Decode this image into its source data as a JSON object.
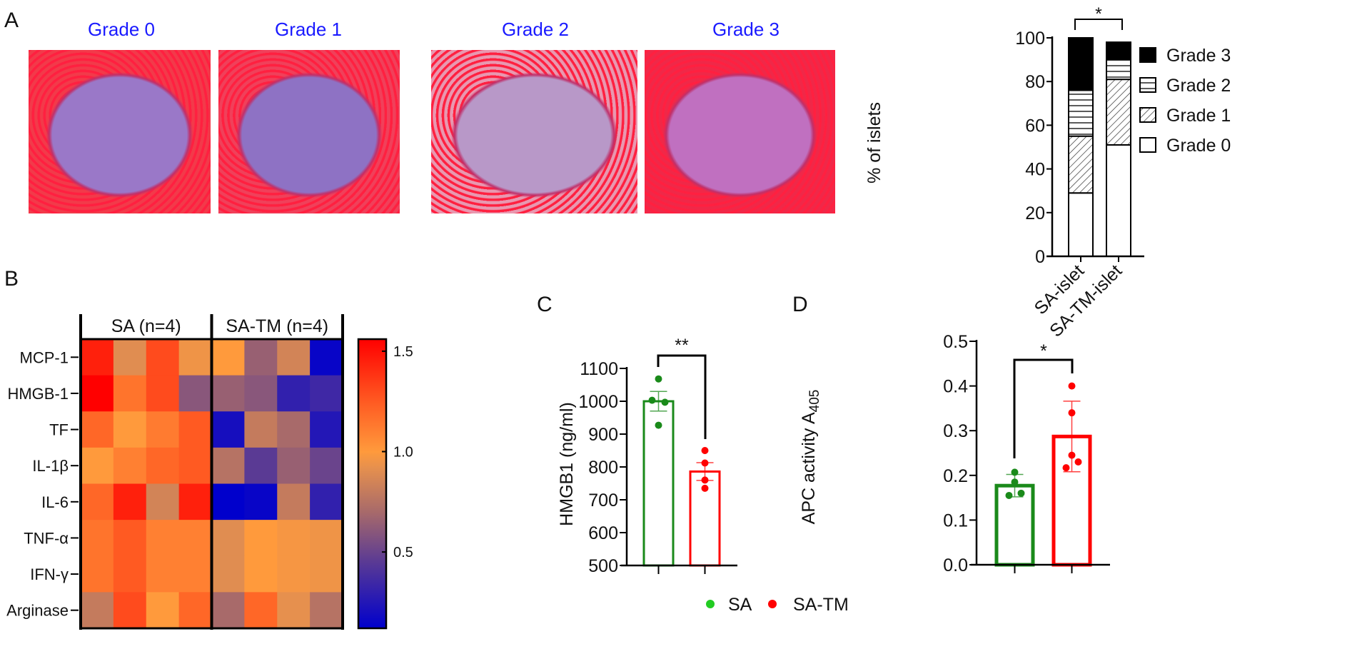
{
  "panel_labels": {
    "a": "A",
    "b": "B",
    "c": "C",
    "d": "D"
  },
  "histology": [
    {
      "title": "Grade 0",
      "tone": "#f23a4a",
      "islet": "#9a78c8"
    },
    {
      "title": "Grade 1",
      "tone": "#f0405a",
      "islet": "#8e72c4"
    },
    {
      "title": "Grade 2",
      "tone": "#e898b0",
      "islet": "#b898c8"
    },
    {
      "title": "Grade 3",
      "tone": "#f02848",
      "islet": "#c070c0"
    }
  ],
  "chart_data": [
    {
      "id": "A",
      "type": "bar",
      "stacked": true,
      "categories": [
        "SA-islet",
        "SA-TM-islet"
      ],
      "series": [
        {
          "name": "Grade 0",
          "values": [
            29,
            51
          ],
          "fill": "white"
        },
        {
          "name": "Grade 1",
          "values": [
            26,
            30
          ],
          "fill": "diagonal-hatch"
        },
        {
          "name": "Grade 2",
          "values": [
            21,
            9
          ],
          "fill": "horizontal-hatch"
        },
        {
          "name": "Grade 3",
          "values": [
            24,
            8
          ],
          "fill": "black"
        }
      ],
      "legend_order": [
        "Grade 3",
        "Grade 2",
        "Grade 1",
        "Grade 0"
      ],
      "ylabel": "% of islets",
      "ylim": [
        0,
        100
      ],
      "yticks": [
        0,
        20,
        40,
        60,
        80,
        100
      ],
      "ytick_labels": [
        "0",
        "20",
        "40",
        "60",
        "80",
        "100"
      ],
      "significance": "*",
      "legend": "right"
    },
    {
      "id": "B",
      "type": "heatmap",
      "rows": [
        "MCP-1",
        "HMGB-1",
        "TF",
        "IL-1β",
        "IL-6",
        "TNF-α",
        "IFN-γ",
        "Arginase"
      ],
      "column_groups": [
        {
          "label": "SA (n=4)",
          "n": 4
        },
        {
          "label": "SA-TM (n=4)",
          "n": 4
        }
      ],
      "values": [
        [
          1.45,
          0.9,
          1.3,
          0.95,
          1.0,
          0.65,
          0.85,
          0.15
        ],
        [
          1.56,
          1.15,
          1.3,
          0.6,
          0.65,
          0.6,
          0.3,
          0.35
        ],
        [
          1.2,
          1.0,
          1.12,
          1.25,
          0.2,
          0.8,
          0.7,
          0.25
        ],
        [
          1.0,
          1.1,
          1.2,
          1.25,
          0.75,
          0.45,
          0.65,
          0.5
        ],
        [
          1.2,
          1.45,
          0.85,
          1.45,
          0.12,
          0.15,
          0.8,
          0.3
        ],
        [
          1.15,
          1.25,
          1.1,
          1.1,
          0.9,
          1.0,
          0.97,
          0.95
        ],
        [
          1.15,
          1.25,
          1.1,
          1.1,
          0.9,
          1.0,
          0.97,
          0.95
        ],
        [
          0.8,
          1.3,
          1.0,
          1.2,
          0.7,
          1.2,
          0.92,
          0.75
        ]
      ],
      "colorbar": {
        "range": [
          0.12,
          1.56
        ],
        "ticks": [
          0.5,
          1.0,
          1.5
        ],
        "tick_labels": [
          "0.5",
          "1.0",
          "1.5"
        ],
        "stops": [
          {
            "v": 0.12,
            "c": "#0000cc"
          },
          {
            "v": 0.45,
            "c": "#5a3a94"
          },
          {
            "v": 0.7,
            "c": "#a86a6a"
          },
          {
            "v": 0.92,
            "c": "#e6904e"
          },
          {
            "v": 1.0,
            "c": "#ff9a3c"
          },
          {
            "v": 1.25,
            "c": "#ff5a22"
          },
          {
            "v": 1.56,
            "c": "#ff0000"
          }
        ]
      }
    },
    {
      "id": "C",
      "type": "bar",
      "categories": [
        "SA",
        "SA-TM"
      ],
      "means": [
        1000,
        786
      ],
      "errors": [
        30,
        27
      ],
      "points": [
        [
          1068,
          1003,
          997,
          927
        ],
        [
          850,
          812,
          760,
          735
        ]
      ],
      "ylabel": "HMGB1  (ng/ml)",
      "ylim": [
        500,
        1100
      ],
      "yticks": [
        500,
        600,
        700,
        800,
        900,
        1000,
        1100
      ],
      "ytick_labels": [
        "500",
        "600",
        "700",
        "800",
        "900",
        "1000",
        "1100"
      ],
      "significance": "**"
    },
    {
      "id": "D",
      "type": "bar",
      "categories": [
        "SA",
        "SA-TM"
      ],
      "means": [
        0.177,
        0.287
      ],
      "errors": [
        0.025,
        0.079
      ],
      "points": [
        [
          0.207,
          0.185,
          0.155,
          0.16
        ],
        [
          0.4,
          0.34,
          0.245,
          0.23,
          0.217
        ]
      ],
      "ylabel": "APC activity A",
      "ylabel_subscript": "405",
      "ylim": [
        0,
        0.5
      ],
      "yticks": [
        0,
        0.1,
        0.2,
        0.3,
        0.4,
        0.5
      ],
      "ytick_labels": [
        "0.0",
        "0.1",
        "0.2",
        "0.3",
        "0.4",
        "0.5"
      ],
      "significance": "*"
    }
  ],
  "legend": [
    {
      "label": "SA",
      "color": "#1a8a1a",
      "dot": "#22cc22"
    },
    {
      "label": "SA-TM",
      "color": "#ff0000",
      "dot": "#ff0000"
    }
  ]
}
